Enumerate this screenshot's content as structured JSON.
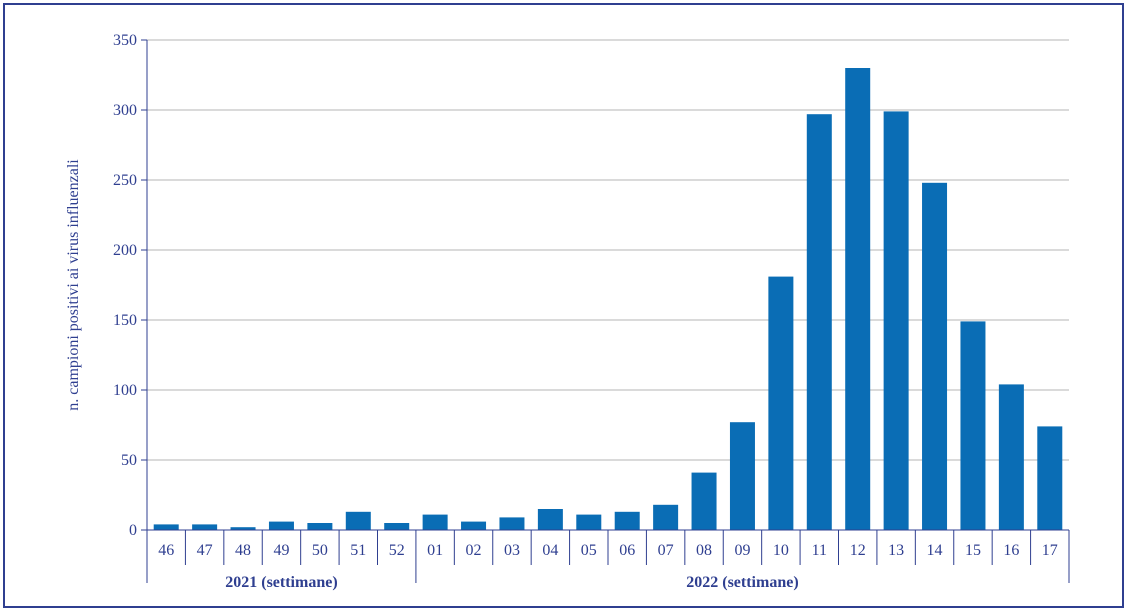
{
  "chart_data": {
    "type": "bar",
    "title": "",
    "xlabel": "",
    "ylabel": "n. campioni positivi ai virus influenzali",
    "ylim": [
      0,
      350
    ],
    "yticks": [
      0,
      50,
      100,
      150,
      200,
      250,
      300,
      350
    ],
    "grid": true,
    "categories": [
      "46",
      "47",
      "48",
      "49",
      "50",
      "51",
      "52",
      "01",
      "02",
      "03",
      "04",
      "05",
      "06",
      "07",
      "08",
      "09",
      "10",
      "11",
      "12",
      "13",
      "14",
      "15",
      "16",
      "17"
    ],
    "values": [
      4,
      4,
      2,
      6,
      5,
      13,
      5,
      11,
      6,
      9,
      15,
      11,
      13,
      18,
      41,
      77,
      181,
      297,
      330,
      299,
      248,
      149,
      104,
      74
    ],
    "groups": [
      {
        "label": "2021 (settimane)",
        "count": 7
      },
      {
        "label": "2022 (settimane)",
        "count": 17
      }
    ],
    "colors": {
      "bar": "#0a6db5",
      "text": "#2f3f90",
      "grid": "#b4b4b4",
      "axis": "#2f3f90",
      "frame": "#2f3f90"
    }
  }
}
